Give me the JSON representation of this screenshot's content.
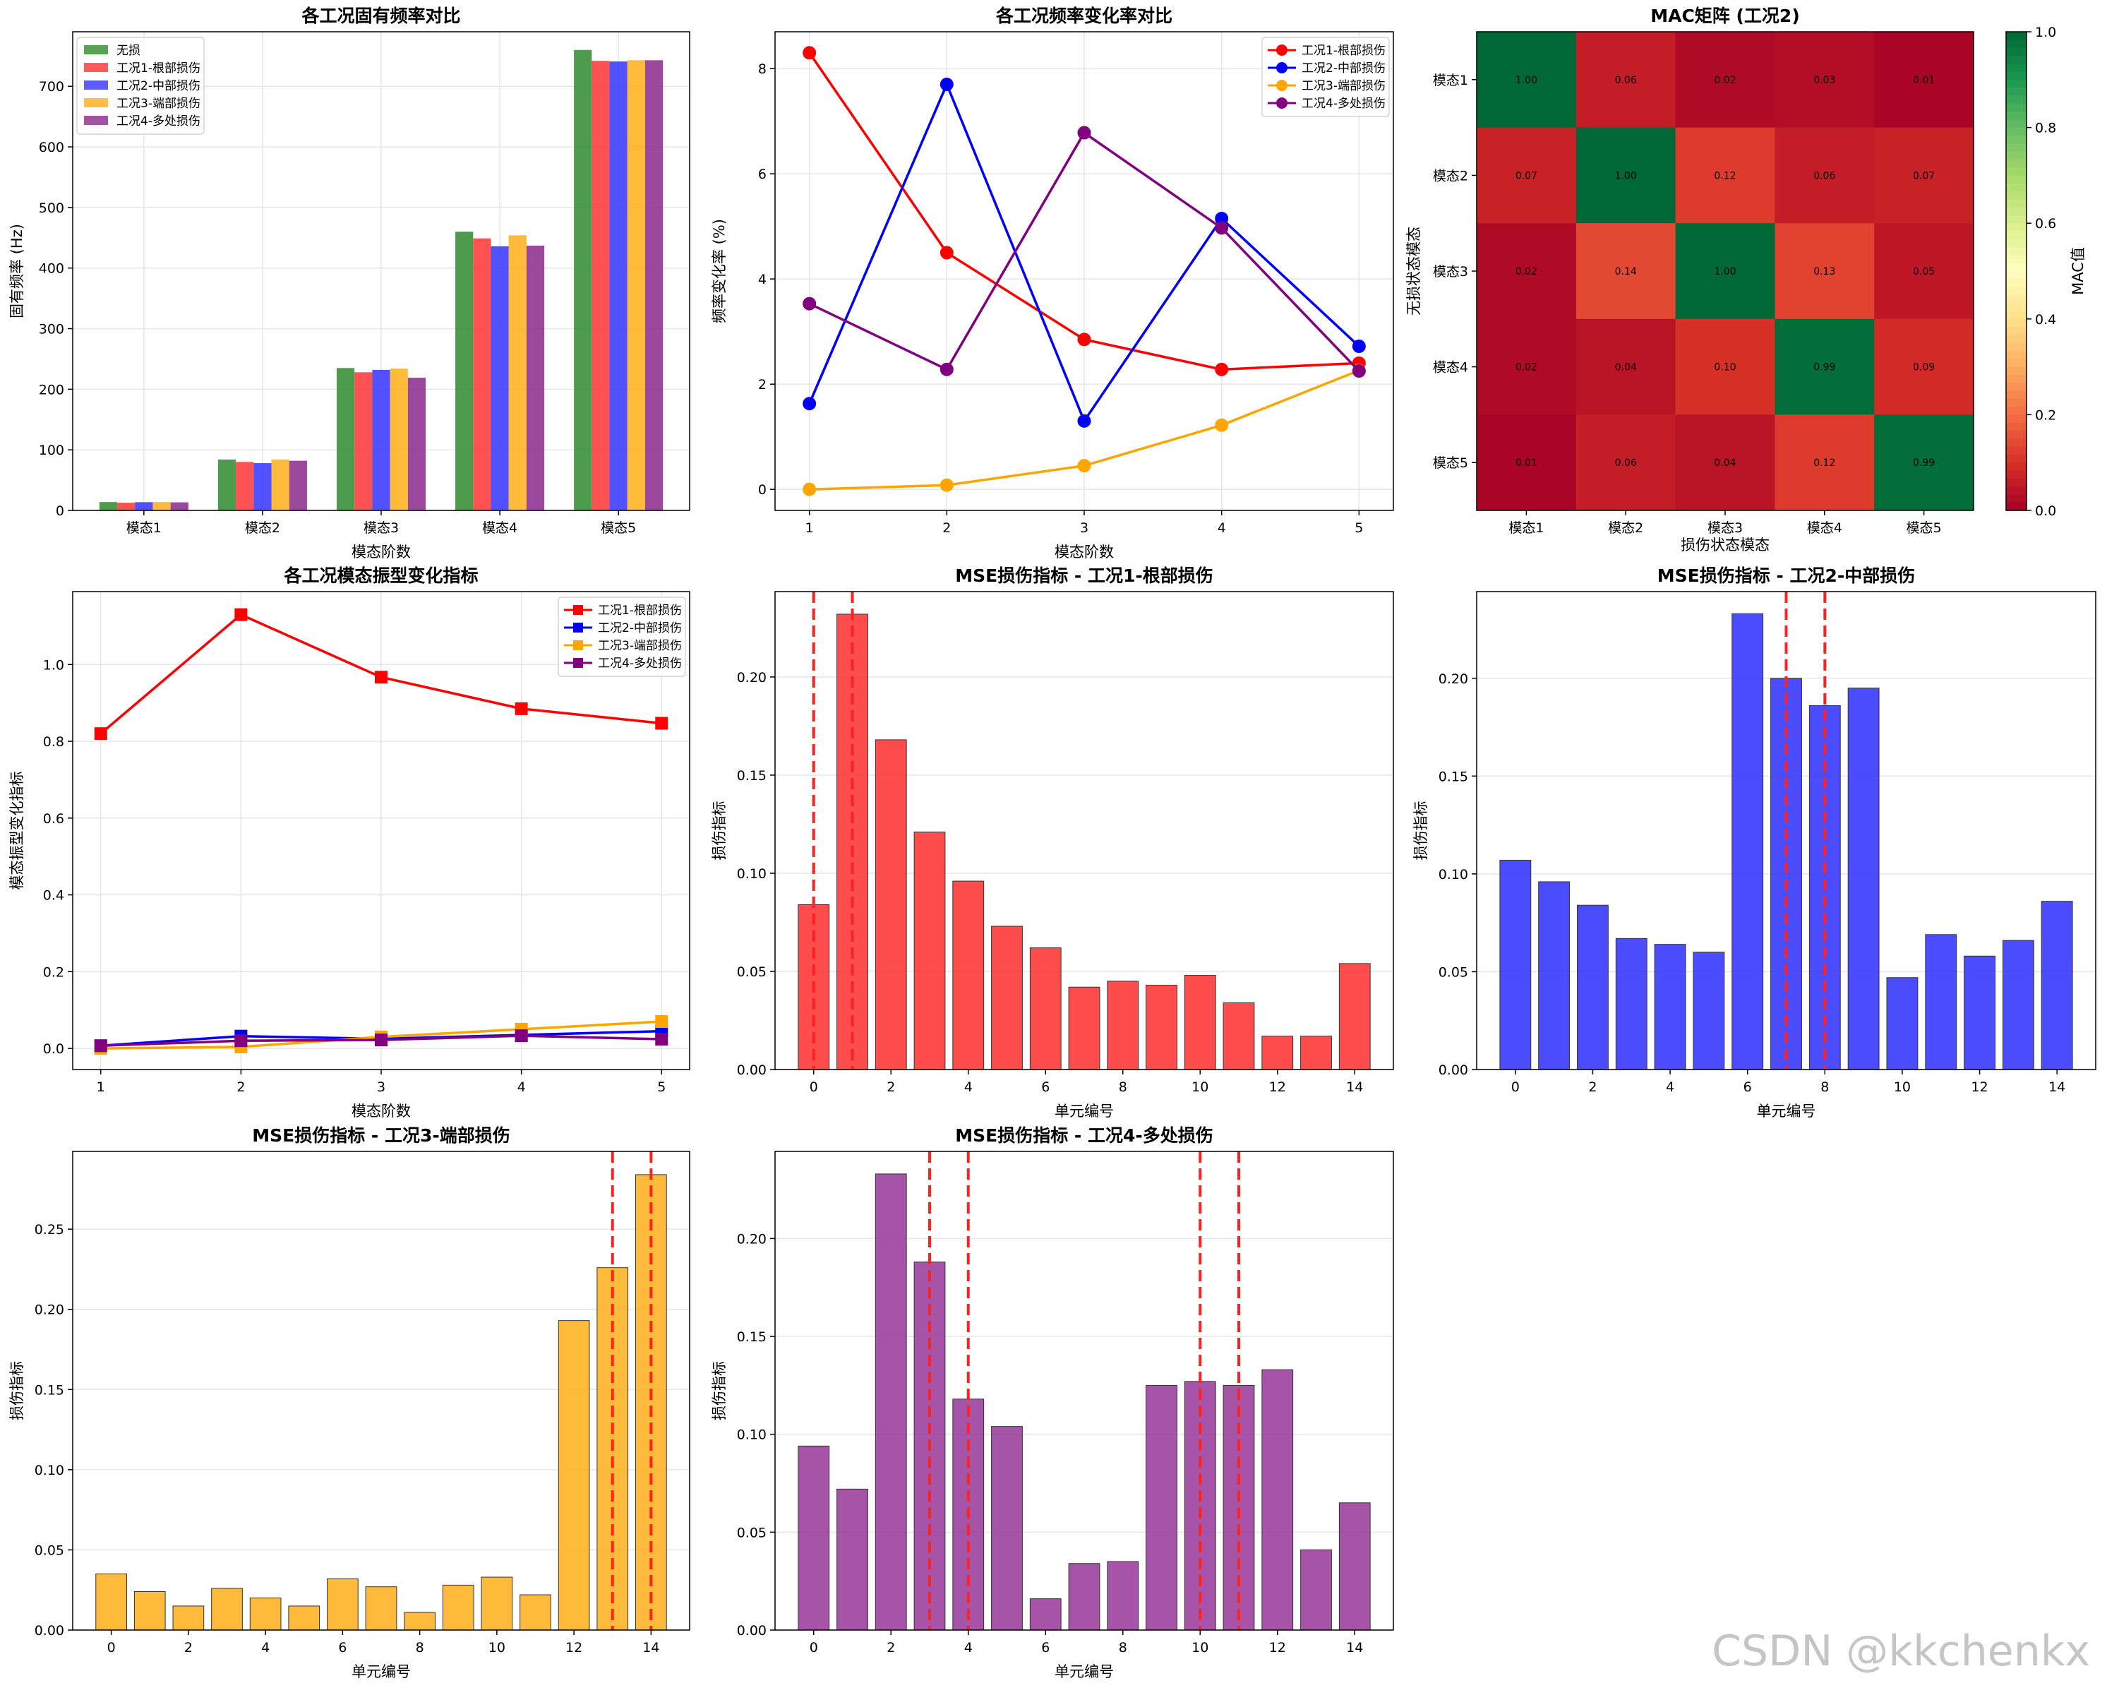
{
  "watermark": "CSDN @kkchenkx",
  "chart_data": [
    {
      "id": "freq",
      "type": "bar",
      "title": "各工况固有频率对比",
      "xlabel": "模态阶数",
      "ylabel": "固有频率 (Hz)",
      "categories": [
        "模态1",
        "模态2",
        "模态3",
        "模态4",
        "模态5"
      ],
      "ylim": [
        0,
        790
      ],
      "yticks": [
        0,
        100,
        200,
        300,
        400,
        500,
        600,
        700
      ],
      "legend_position": "top-left",
      "series": [
        {
          "name": "无损",
          "color": "#2e8b2e",
          "values": [
            13.8,
            84,
            235,
            460,
            760
          ]
        },
        {
          "name": "工况1-根部损伤",
          "color": "#ff3333",
          "values": [
            12.7,
            80,
            228,
            449,
            742
          ]
        },
        {
          "name": "工况2-中部损伤",
          "color": "#3333ff",
          "values": [
            13.6,
            78,
            232,
            436,
            741
          ]
        },
        {
          "name": "工况3-端部损伤",
          "color": "#ffae1a",
          "values": [
            13.8,
            84,
            234,
            454,
            743
          ]
        },
        {
          "name": "工况4-多处损伤",
          "color": "#8b288b",
          "values": [
            13.3,
            82,
            219,
            437,
            743
          ]
        }
      ]
    },
    {
      "id": "freqchange",
      "type": "line",
      "title": "各工况频率变化率对比",
      "xlabel": "模态阶数",
      "ylabel": "频率变化率 (%)",
      "x": [
        1,
        2,
        3,
        4,
        5
      ],
      "xlim": [
        0.75,
        5.25
      ],
      "ylim": [
        -0.4,
        8.7
      ],
      "yticks": [
        0,
        2,
        4,
        6,
        8
      ],
      "legend_position": "top-right",
      "series": [
        {
          "name": "工况1-根部损伤",
          "color": "#ff0000",
          "values": [
            8.3,
            4.5,
            2.85,
            2.28,
            2.4
          ]
        },
        {
          "name": "工况2-中部损伤",
          "color": "#0000ff",
          "values": [
            1.63,
            7.7,
            1.3,
            5.15,
            2.72
          ]
        },
        {
          "name": "工况3-端部损伤",
          "color": "#ffa500",
          "values": [
            0.0,
            0.08,
            0.45,
            1.22,
            2.26
          ]
        },
        {
          "name": "工况4-多处损伤",
          "color": "#800080",
          "values": [
            3.53,
            2.28,
            6.78,
            4.97,
            2.25
          ]
        }
      ]
    },
    {
      "id": "mac",
      "type": "heatmap",
      "title": "MAC矩阵 (工况2)",
      "xlabel": "损伤状态模态",
      "ylabel": "无损状态模态",
      "colorbar_label": "MAC值",
      "colorbar_ticks": [
        "0.0",
        "0.2",
        "0.4",
        "0.6",
        "0.8",
        "1.0"
      ],
      "xcategories": [
        "模态1",
        "模态2",
        "模态3",
        "模态4",
        "模态5"
      ],
      "ycategories": [
        "模态1",
        "模态2",
        "模态3",
        "模态4",
        "模态5"
      ],
      "matrix": [
        [
          1.0,
          0.06,
          0.02,
          0.03,
          0.01
        ],
        [
          0.07,
          1.0,
          0.12,
          0.06,
          0.07
        ],
        [
          0.02,
          0.14,
          1.0,
          0.13,
          0.05
        ],
        [
          0.02,
          0.04,
          0.1,
          0.99,
          0.09
        ],
        [
          0.01,
          0.06,
          0.04,
          0.12,
          0.99
        ]
      ],
      "labels": [
        [
          "1.00",
          "0.06",
          "0.02",
          "0.03",
          "0.01"
        ],
        [
          "0.07",
          "1.00",
          "0.12",
          "0.06",
          "0.07"
        ],
        [
          "0.02",
          "0.14",
          "1.00",
          "0.13",
          "0.05"
        ],
        [
          "0.02",
          "0.04",
          "0.10",
          "0.99",
          "0.09"
        ],
        [
          "0.01",
          "0.06",
          "0.04",
          "0.12",
          "0.99"
        ]
      ]
    },
    {
      "id": "shape",
      "type": "line",
      "title": "各工况模态振型变化指标",
      "xlabel": "模态阶数",
      "ylabel": "模态振型变化指标",
      "x": [
        1,
        2,
        3,
        4,
        5
      ],
      "xlim": [
        0.8,
        5.2
      ],
      "ylim": [
        -0.055,
        1.19
      ],
      "yticks": [
        "0.0",
        "0.2",
        "0.4",
        "0.6",
        "0.8",
        "1.0"
      ],
      "legend_position": "top-right",
      "marker": "square",
      "series": [
        {
          "name": "工况1-根部损伤",
          "color": "#ff0000",
          "values": [
            0.82,
            1.13,
            0.967,
            0.885,
            0.847
          ]
        },
        {
          "name": "工况2-中部损伤",
          "color": "#0000ff",
          "values": [
            0.007,
            0.032,
            0.025,
            0.035,
            0.045
          ]
        },
        {
          "name": "工况3-端部损伤",
          "color": "#ffa500",
          "values": [
            0.0,
            0.004,
            0.03,
            0.05,
            0.07
          ]
        },
        {
          "name": "工况4-多处损伤",
          "color": "#800080",
          "values": [
            0.007,
            0.02,
            0.022,
            0.033,
            0.024
          ]
        }
      ]
    },
    {
      "id": "mse1",
      "type": "bar",
      "title": "MSE损伤指标 - 工况1-根部损伤",
      "xlabel": "单元编号",
      "ylabel": "损伤指标",
      "color": "#ff3333",
      "x": [
        0,
        1,
        2,
        3,
        4,
        5,
        6,
        7,
        8,
        9,
        10,
        11,
        12,
        13,
        14
      ],
      "values": [
        0.084,
        0.232,
        0.168,
        0.121,
        0.096,
        0.073,
        0.062,
        0.042,
        0.045,
        0.043,
        0.048,
        0.034,
        0.017,
        0.017,
        0.054
      ],
      "damage_lines": [
        0,
        1
      ],
      "xticks": [
        0,
        2,
        4,
        6,
        8,
        10,
        12,
        14
      ],
      "xlim": [
        -1.0,
        15.0
      ],
      "ylim": [
        0,
        0.2435
      ],
      "yticks": [
        "0.00",
        "0.05",
        "0.10",
        "0.15",
        "0.20"
      ]
    },
    {
      "id": "mse2",
      "type": "bar",
      "title": "MSE损伤指标 - 工况2-中部损伤",
      "xlabel": "单元编号",
      "ylabel": "损伤指标",
      "color": "#3333ff",
      "x": [
        0,
        1,
        2,
        3,
        4,
        5,
        6,
        7,
        8,
        9,
        10,
        11,
        12,
        13,
        14
      ],
      "values": [
        0.107,
        0.096,
        0.084,
        0.067,
        0.064,
        0.06,
        0.233,
        0.2,
        0.186,
        0.195,
        0.047,
        0.069,
        0.058,
        0.066,
        0.086
      ],
      "damage_lines": [
        7,
        8
      ],
      "xticks": [
        0,
        2,
        4,
        6,
        8,
        10,
        12,
        14
      ],
      "xlim": [
        -1.0,
        15.0
      ],
      "ylim": [
        0,
        0.2443
      ],
      "yticks": [
        "0.00",
        "0.05",
        "0.10",
        "0.15",
        "0.20"
      ]
    },
    {
      "id": "mse3",
      "type": "bar",
      "title": "MSE损伤指标 - 工况3-端部损伤",
      "xlabel": "单元编号",
      "ylabel": "损伤指标",
      "color": "#ffb020",
      "x": [
        0,
        1,
        2,
        3,
        4,
        5,
        6,
        7,
        8,
        9,
        10,
        11,
        12,
        13,
        14
      ],
      "values": [
        0.035,
        0.024,
        0.015,
        0.026,
        0.02,
        0.015,
        0.032,
        0.027,
        0.011,
        0.028,
        0.033,
        0.022,
        0.193,
        0.226,
        0.284
      ],
      "damage_lines": [
        13,
        14
      ],
      "xticks": [
        0,
        2,
        4,
        6,
        8,
        10,
        12,
        14
      ],
      "xlim": [
        -1.0,
        15.0
      ],
      "ylim": [
        0,
        0.2985
      ],
      "yticks": [
        "0.00",
        "0.05",
        "0.10",
        "0.15",
        "0.20",
        "0.25"
      ]
    },
    {
      "id": "mse4",
      "type": "bar",
      "title": "MSE损伤指标 - 工况4-多处损伤",
      "xlabel": "单元编号",
      "ylabel": "损伤指标",
      "color": "#9b3b9b",
      "x": [
        0,
        1,
        2,
        3,
        4,
        5,
        6,
        7,
        8,
        9,
        10,
        11,
        12,
        13,
        14
      ],
      "values": [
        0.094,
        0.072,
        0.233,
        0.188,
        0.118,
        0.104,
        0.016,
        0.034,
        0.035,
        0.125,
        0.127,
        0.125,
        0.133,
        0.041,
        0.065
      ],
      "damage_lines": [
        3,
        4,
        10,
        11
      ],
      "xticks": [
        0,
        2,
        4,
        6,
        8,
        10,
        12,
        14
      ],
      "xlim": [
        -1.0,
        15.0
      ],
      "ylim": [
        0,
        0.2445
      ],
      "yticks": [
        "0.00",
        "0.05",
        "0.10",
        "0.15",
        "0.20"
      ]
    }
  ]
}
